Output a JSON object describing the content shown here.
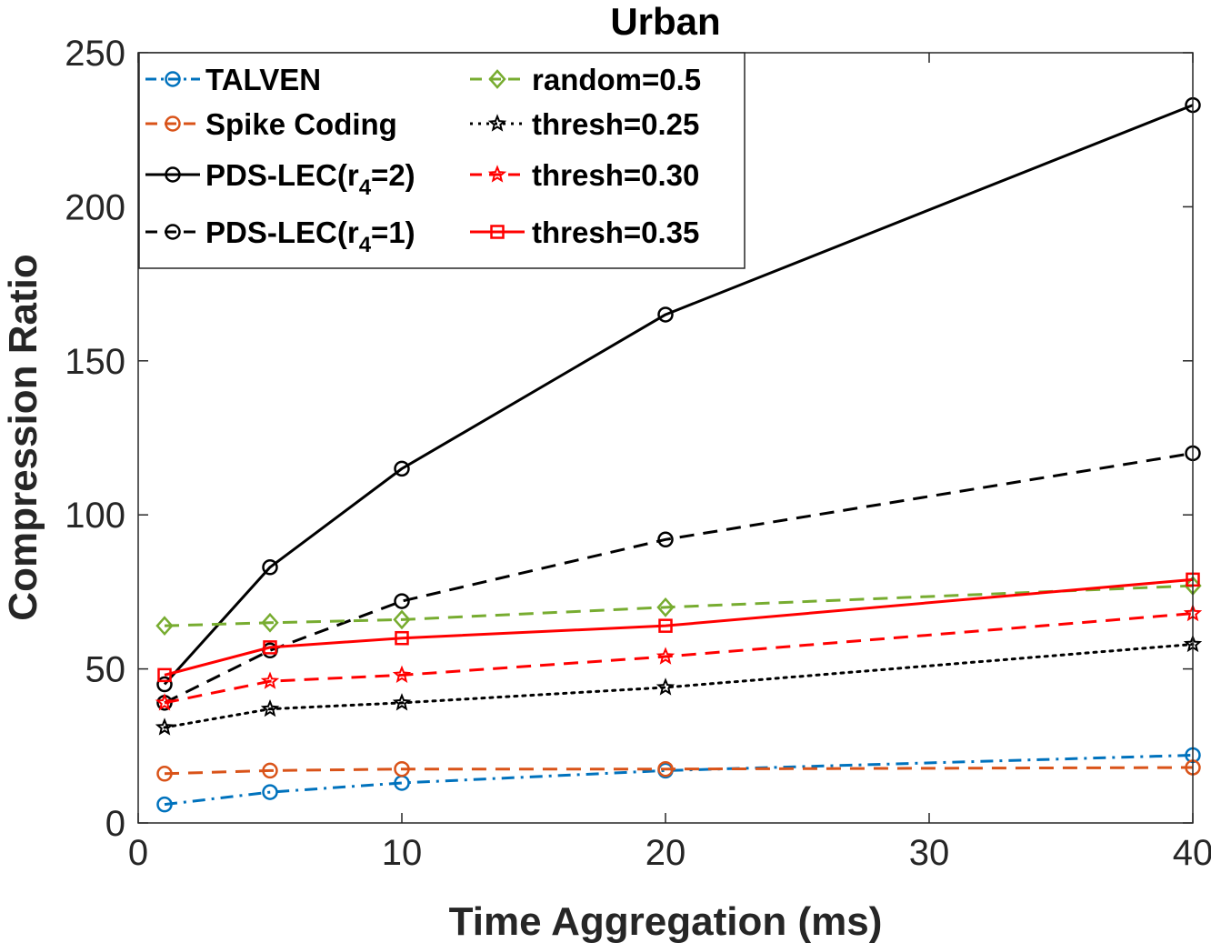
{
  "chart_data": {
    "type": "line",
    "title": "Urban",
    "xlabel": "Time Aggregation (ms)",
    "ylabel": "Compression Ratio",
    "xlim": [
      0,
      40
    ],
    "ylim": [
      0,
      250
    ],
    "xticks": [
      0,
      10,
      20,
      30,
      40
    ],
    "yticks": [
      0,
      50,
      100,
      150,
      200,
      250
    ],
    "grid": false,
    "legend_position": "top-left",
    "legend_columns": 2,
    "x": [
      1,
      5,
      10,
      20,
      40
    ],
    "series": [
      {
        "name": "TALVEN",
        "values": [
          6,
          10,
          13,
          17,
          22
        ],
        "color": "#0072BD",
        "dash": "dash-dot",
        "marker": "circle"
      },
      {
        "name": "Spike Coding",
        "values": [
          16,
          17,
          17.5,
          17.5,
          18
        ],
        "color": "#D95319",
        "dash": "dashed",
        "marker": "circle"
      },
      {
        "name": "PDS-LEC(r",
        "subscript": "4",
        "suffix": "=2)",
        "values": [
          45,
          83,
          115,
          165,
          233
        ],
        "color": "#000000",
        "dash": "solid",
        "marker": "circle"
      },
      {
        "name": "PDS-LEC(r",
        "subscript": "4",
        "suffix": "=1)",
        "values": [
          39,
          56,
          72,
          92,
          120
        ],
        "color": "#000000",
        "dash": "dashed",
        "marker": "circle"
      },
      {
        "name": "random=0.5",
        "values": [
          64,
          65,
          66,
          70,
          77
        ],
        "color": "#77AC30",
        "dash": "dashed",
        "marker": "diamond"
      },
      {
        "name": "thresh=0.25",
        "values": [
          31,
          37,
          39,
          44,
          58
        ],
        "color": "#000000",
        "dash": "dotted",
        "marker": "star"
      },
      {
        "name": "thresh=0.30",
        "values": [
          39,
          46,
          48,
          54,
          68
        ],
        "color": "#FF0000",
        "dash": "dashed",
        "marker": "star"
      },
      {
        "name": "thresh=0.35",
        "values": [
          48,
          57,
          60,
          64,
          79
        ],
        "color": "#FF0000",
        "dash": "solid",
        "marker": "square"
      }
    ]
  }
}
